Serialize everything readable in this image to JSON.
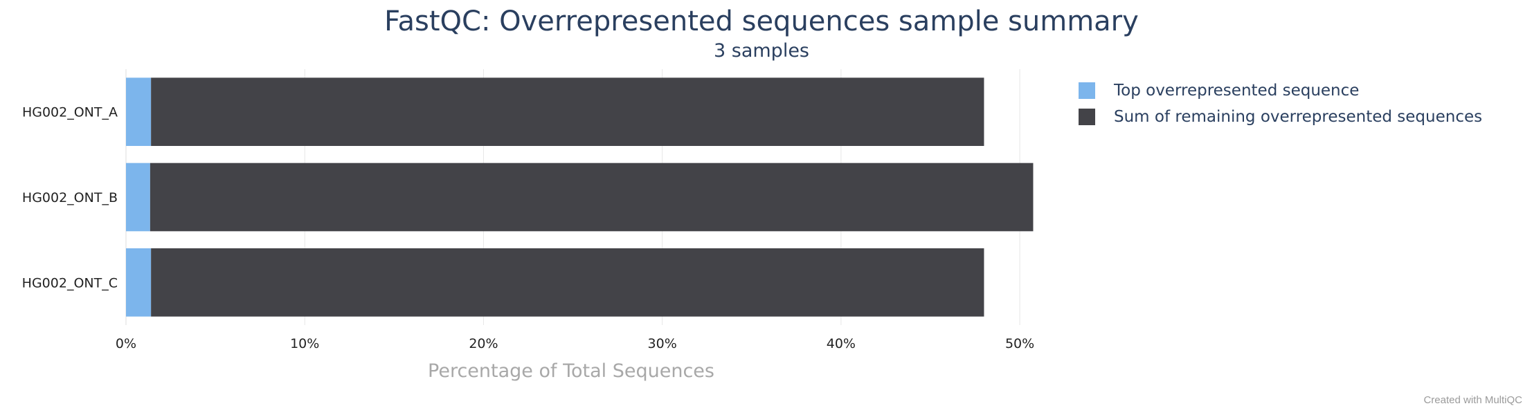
{
  "header": {
    "title": "FastQC: Overrepresented sequences sample summary",
    "subtitle": "3 samples"
  },
  "credit": "Created with MultiQC",
  "colors": {
    "top": "#7cb5ec",
    "remaining": "#434348",
    "text": "#2a3f5f",
    "axis_title": "#a8a8a8",
    "grid": "#e6e6e6"
  },
  "chart_data": {
    "type": "bar",
    "orientation": "horizontal",
    "stacked": true,
    "categories": [
      "HG002_ONT_A",
      "HG002_ONT_B",
      "HG002_ONT_C"
    ],
    "series": [
      {
        "name": "Top overrepresented sequence",
        "values": [
          1.4,
          1.35,
          1.4
        ]
      },
      {
        "name": "Sum of remaining overrepresented sequences",
        "values": [
          46.6,
          49.4,
          46.6
        ]
      }
    ],
    "xlabel": "Percentage of Total Sequences",
    "xlim": [
      0,
      50.5
    ],
    "xticks": [
      0,
      10,
      20,
      30,
      40,
      50
    ],
    "xtick_labels": [
      "0%",
      "10%",
      "20%",
      "30%",
      "40%",
      "50%"
    ],
    "grid": true,
    "legend_position": "right"
  }
}
